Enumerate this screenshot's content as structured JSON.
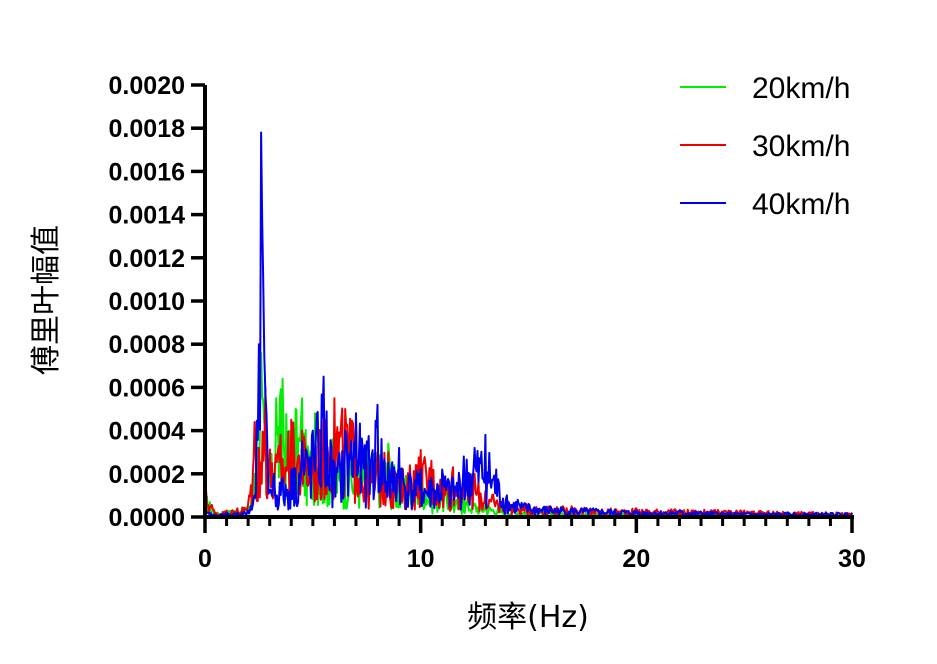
{
  "chart_data": {
    "type": "line",
    "xlabel": "频率(Hz)",
    "ylabel": "傅里叶幅值",
    "xlim": [
      0,
      30
    ],
    "ylim": [
      0,
      0.002
    ],
    "x_ticks": [
      "0",
      "10",
      "20",
      "30"
    ],
    "y_ticks": [
      "0.0000",
      "0.0002",
      "0.0004",
      "0.0006",
      "0.0008",
      "0.0010",
      "0.0012",
      "0.0014",
      "0.0016",
      "0.0018",
      "0.0020"
    ],
    "grid": false,
    "legend_position": "top-right",
    "series": [
      {
        "name": "20km/h",
        "color": "#00ee00",
        "x": [
          0,
          0.5,
          1,
          1.5,
          2,
          2.3,
          2.6,
          2.8,
          3.0,
          3.3,
          3.6,
          3.9,
          4.2,
          4.5,
          4.8,
          5.1,
          5.5,
          5.9,
          6.3,
          6.7,
          7.1,
          7.5,
          8.0,
          8.5,
          9.0,
          9.5,
          10.0,
          10.5,
          11.0,
          11.5,
          12.0,
          13.0,
          14.0,
          15.0,
          17.0,
          20.0,
          25.0,
          30.0
        ],
        "values": [
          0.00012,
          2e-05,
          3e-05,
          4e-05,
          5e-05,
          0.0002,
          0.00076,
          0.0004,
          0.0002,
          0.00055,
          0.00064,
          0.0004,
          0.0005,
          0.00055,
          0.0003,
          0.00048,
          0.0003,
          0.00036,
          0.00025,
          0.0003,
          0.00022,
          0.00034,
          0.0003,
          0.00034,
          0.00018,
          0.0002,
          0.00028,
          0.00012,
          0.00015,
          8e-05,
          0.0001,
          6e-05,
          4e-05,
          3e-05,
          2e-05,
          2e-05,
          2e-05,
          1e-05
        ]
      },
      {
        "name": "30km/h",
        "color": "#ee0000",
        "x": [
          0,
          0.5,
          1,
          1.5,
          2,
          2.3,
          2.5,
          2.8,
          3.1,
          3.5,
          4.0,
          4.5,
          5.0,
          5.5,
          6.0,
          6.5,
          7.0,
          7.5,
          8.0,
          8.5,
          9.0,
          9.5,
          10.0,
          10.5,
          11.0,
          11.5,
          12.0,
          12.5,
          13.0,
          14.0,
          15.0,
          16.0,
          17.0,
          18.0,
          20.0,
          25.0,
          30.0
        ],
        "values": [
          0.00015,
          2e-05,
          3e-05,
          4e-05,
          6e-05,
          0.00044,
          0.00032,
          0.0006,
          0.00025,
          0.00038,
          0.00045,
          0.0004,
          0.00035,
          0.00045,
          0.00055,
          0.0005,
          0.00046,
          0.00025,
          0.0003,
          0.0003,
          0.00022,
          0.00024,
          0.00031,
          0.00026,
          0.0002,
          0.00023,
          0.00018,
          0.0002,
          0.00012,
          8e-05,
          6e-05,
          5e-05,
          5e-05,
          4e-05,
          4e-05,
          3e-05,
          2e-05
        ]
      },
      {
        "name": "40km/h",
        "color": "#0000ee",
        "x": [
          0,
          0.5,
          1,
          1.5,
          2,
          2.3,
          2.5,
          2.6,
          2.7,
          2.9,
          3.2,
          3.6,
          4.0,
          4.5,
          5.0,
          5.5,
          6.0,
          6.5,
          7.0,
          7.5,
          8.0,
          8.5,
          9.0,
          9.5,
          10.0,
          10.5,
          11.0,
          11.5,
          12.0,
          12.5,
          13.0,
          13.5,
          14.0,
          14.5,
          15.0,
          16.0,
          18.0,
          20.0,
          22.0,
          25.0,
          30.0
        ],
        "values": [
          3e-05,
          1e-05,
          2e-05,
          2e-05,
          3e-05,
          0.0001,
          0.0008,
          0.00178,
          0.0011,
          0.0003,
          0.0002,
          0.00018,
          0.00022,
          0.00035,
          0.0004,
          0.00065,
          0.00025,
          0.0004,
          0.00048,
          0.00035,
          0.00052,
          0.00025,
          0.00032,
          0.0002,
          0.00022,
          0.00018,
          0.00022,
          0.00018,
          0.00028,
          0.00032,
          0.00038,
          0.00022,
          0.0001,
          8e-05,
          6e-05,
          5e-05,
          4e-05,
          3e-05,
          3e-05,
          2e-05,
          2e-05
        ]
      }
    ]
  }
}
